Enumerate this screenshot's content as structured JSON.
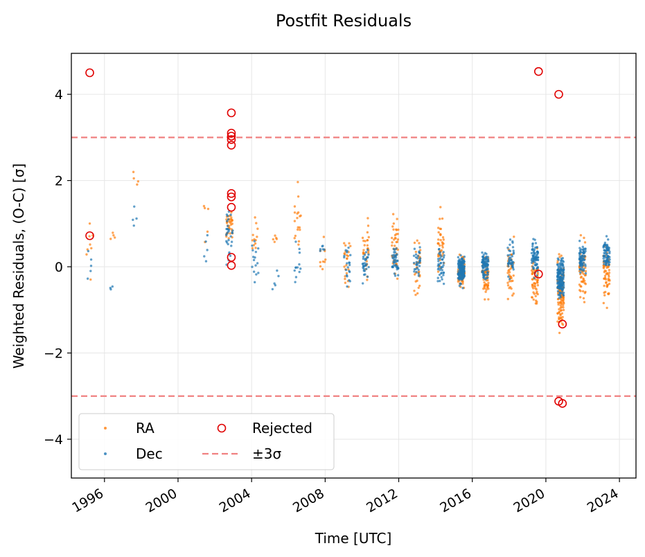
{
  "chart_data": {
    "type": "scatter",
    "title": "Postfit Residuals",
    "xlabel": "Time [UTC]",
    "ylabel": "Weighted Residuals, (O-C) [σ]",
    "xlim": [
      1994.2,
      2024.9
    ],
    "ylim": [
      -4.9,
      4.95
    ],
    "x_ticks": [
      "1996",
      "2000",
      "2004",
      "2008",
      "2012",
      "2016",
      "2020",
      "2024"
    ],
    "y_ticks": [
      "−4",
      "−2",
      "0",
      "2",
      "4"
    ],
    "grid": true,
    "threshold": 3,
    "colors": {
      "ra": "#ff7f0e",
      "dec": "#1f77b4",
      "rejected": "#e00000",
      "threshold": "#f08080"
    },
    "legend": {
      "placement": "lower-left",
      "entries": [
        {
          "key": "ra",
          "label": "RA",
          "marker": "dot",
          "color": "#ff7f0e"
        },
        {
          "key": "rejected",
          "label": "Rejected",
          "marker": "open-circle",
          "color": "#e00000"
        },
        {
          "key": "dec",
          "label": "Dec",
          "marker": "dot",
          "color": "#1f77b4"
        },
        {
          "key": "threshold",
          "label": "±3σ",
          "marker": "dashed-line",
          "color": "#f08080"
        }
      ]
    },
    "rejected": [
      {
        "x": 1995.2,
        "y": 4.5
      },
      {
        "x": 1995.2,
        "y": 0.72
      },
      {
        "x": 2002.9,
        "y": 3.57
      },
      {
        "x": 2002.9,
        "y": 3.1
      },
      {
        "x": 2002.9,
        "y": 3.03
      },
      {
        "x": 2002.9,
        "y": 2.95
      },
      {
        "x": 2002.9,
        "y": 2.82
      },
      {
        "x": 2002.9,
        "y": 1.7
      },
      {
        "x": 2002.9,
        "y": 1.62
      },
      {
        "x": 2002.9,
        "y": 1.38
      },
      {
        "x": 2002.9,
        "y": 0.22
      },
      {
        "x": 2002.9,
        "y": 0.03
      },
      {
        "x": 2019.6,
        "y": 4.53
      },
      {
        "x": 2020.7,
        "y": 4.0
      },
      {
        "x": 2019.6,
        "y": -0.17
      },
      {
        "x": 2020.9,
        "y": -1.33
      },
      {
        "x": 2020.7,
        "y": -3.12
      },
      {
        "x": 2020.9,
        "y": -3.17
      }
    ],
    "series": [
      {
        "name": "RA",
        "clusters": [
          {
            "x": 1995.2,
            "yc": 0.5,
            "spread": 1.3,
            "n": 8
          },
          {
            "x": 1996.4,
            "yc": 0.7,
            "spread": 0.2,
            "n": 4
          },
          {
            "x": 1997.7,
            "yc": 1.9,
            "spread": 0.8,
            "n": 4
          },
          {
            "x": 2001.5,
            "yc": 0.9,
            "spread": 1.2,
            "n": 5
          },
          {
            "x": 2002.8,
            "yc": 1.0,
            "spread": 0.9,
            "n": 35
          },
          {
            "x": 2004.2,
            "yc": 0.6,
            "spread": 0.9,
            "n": 12
          },
          {
            "x": 2005.3,
            "yc": 0.7,
            "spread": 0.3,
            "n": 5
          },
          {
            "x": 2006.5,
            "yc": 1.0,
            "spread": 1.2,
            "n": 18
          },
          {
            "x": 2007.9,
            "yc": 0.2,
            "spread": 0.9,
            "n": 10
          },
          {
            "x": 2009.2,
            "yc": 0.0,
            "spread": 1.0,
            "n": 22
          },
          {
            "x": 2010.2,
            "yc": 0.3,
            "spread": 1.0,
            "n": 30
          },
          {
            "x": 2011.8,
            "yc": 0.5,
            "spread": 1.2,
            "n": 40
          },
          {
            "x": 2013.0,
            "yc": 0.0,
            "spread": 1.1,
            "n": 30
          },
          {
            "x": 2014.3,
            "yc": 0.6,
            "spread": 1.0,
            "n": 40
          },
          {
            "x": 2015.4,
            "yc": -0.1,
            "spread": 0.6,
            "n": 80
          },
          {
            "x": 2016.7,
            "yc": -0.2,
            "spread": 0.7,
            "n": 60
          },
          {
            "x": 2018.1,
            "yc": -0.1,
            "spread": 0.9,
            "n": 40
          },
          {
            "x": 2019.4,
            "yc": -0.3,
            "spread": 0.9,
            "n": 60
          },
          {
            "x": 2020.8,
            "yc": -0.6,
            "spread": 1.2,
            "n": 120
          },
          {
            "x": 2022.0,
            "yc": 0.0,
            "spread": 1.0,
            "n": 60
          },
          {
            "x": 2023.3,
            "yc": -0.2,
            "spread": 0.9,
            "n": 60
          }
        ]
      },
      {
        "name": "Dec",
        "clusters": [
          {
            "x": 1995.2,
            "yc": 0.1,
            "spread": 0.9,
            "n": 5
          },
          {
            "x": 1996.4,
            "yc": -0.5,
            "spread": 0.15,
            "n": 3
          },
          {
            "x": 1997.7,
            "yc": 1.0,
            "spread": 0.6,
            "n": 4
          },
          {
            "x": 2001.5,
            "yc": 0.3,
            "spread": 0.6,
            "n": 5
          },
          {
            "x": 2002.8,
            "yc": 0.8,
            "spread": 0.9,
            "n": 30
          },
          {
            "x": 2004.2,
            "yc": 0.2,
            "spread": 0.8,
            "n": 15
          },
          {
            "x": 2005.3,
            "yc": -0.3,
            "spread": 0.4,
            "n": 5
          },
          {
            "x": 2006.5,
            "yc": 0.0,
            "spread": 0.8,
            "n": 12
          },
          {
            "x": 2007.9,
            "yc": 0.4,
            "spread": 0.2,
            "n": 6
          },
          {
            "x": 2009.2,
            "yc": 0.0,
            "spread": 0.8,
            "n": 20
          },
          {
            "x": 2010.2,
            "yc": 0.0,
            "spread": 0.7,
            "n": 30
          },
          {
            "x": 2011.8,
            "yc": 0.1,
            "spread": 0.5,
            "n": 40
          },
          {
            "x": 2013.0,
            "yc": 0.1,
            "spread": 0.5,
            "n": 30
          },
          {
            "x": 2014.3,
            "yc": 0.0,
            "spread": 0.7,
            "n": 40
          },
          {
            "x": 2015.4,
            "yc": -0.05,
            "spread": 0.5,
            "n": 150
          },
          {
            "x": 2016.7,
            "yc": 0.0,
            "spread": 0.5,
            "n": 90
          },
          {
            "x": 2018.1,
            "yc": 0.2,
            "spread": 0.6,
            "n": 40
          },
          {
            "x": 2019.4,
            "yc": 0.2,
            "spread": 0.6,
            "n": 70
          },
          {
            "x": 2020.8,
            "yc": -0.3,
            "spread": 0.6,
            "n": 150
          },
          {
            "x": 2022.0,
            "yc": 0.2,
            "spread": 0.5,
            "n": 70
          },
          {
            "x": 2023.3,
            "yc": 0.3,
            "spread": 0.5,
            "n": 70
          }
        ]
      }
    ]
  }
}
